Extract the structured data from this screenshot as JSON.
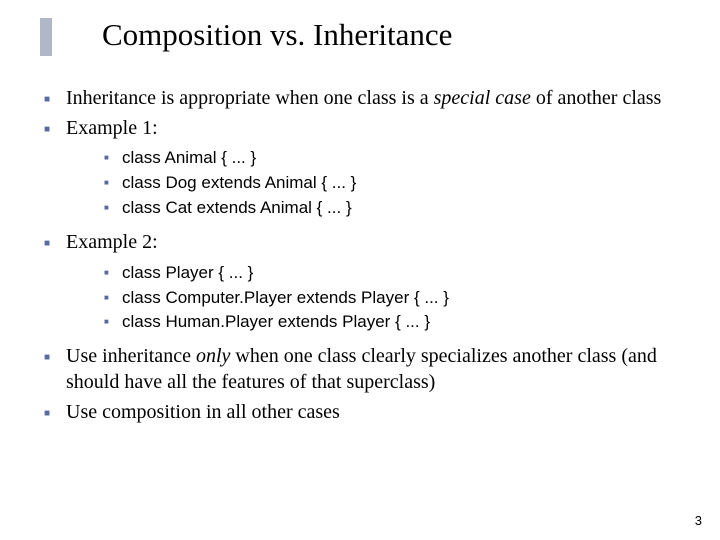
{
  "colors": {
    "background": "#ffffff",
    "text": "#000000",
    "bullet": "#5a6aa0",
    "title_bar": "#b0b7c8"
  },
  "typography": {
    "title_font": "Times New Roman",
    "title_size_pt": 31,
    "body_font": "Times New Roman",
    "body_size_pt": 20,
    "code_font": "Comic Sans MS",
    "code_size_pt": 17,
    "pagenum_size_pt": 13
  },
  "title": "Composition vs. Inheritance",
  "bullets": {
    "b1_pre": "Inheritance is appropriate when one class is a ",
    "b1_ital": "special case",
    "b1_post": " of another class",
    "b2": "Example 1:",
    "b2_code1": "class Animal { ... }",
    "b2_code2": "class Dog extends Animal { ... }",
    "b2_code3": "class Cat extends Animal { ... }",
    "b3": "Example 2:",
    "b3_code1": "class Player { ... }",
    "b3_code2": "class Computer.Player extends Player { ... }",
    "b3_code3": "class Human.Player extends Player { ... }",
    "b4_pre": "Use inheritance ",
    "b4_ital": "only",
    "b4_post": " when one class clearly specializes another class (and should have all the features of that superclass)",
    "b5": "Use composition in all other cases"
  },
  "page_number": "3"
}
